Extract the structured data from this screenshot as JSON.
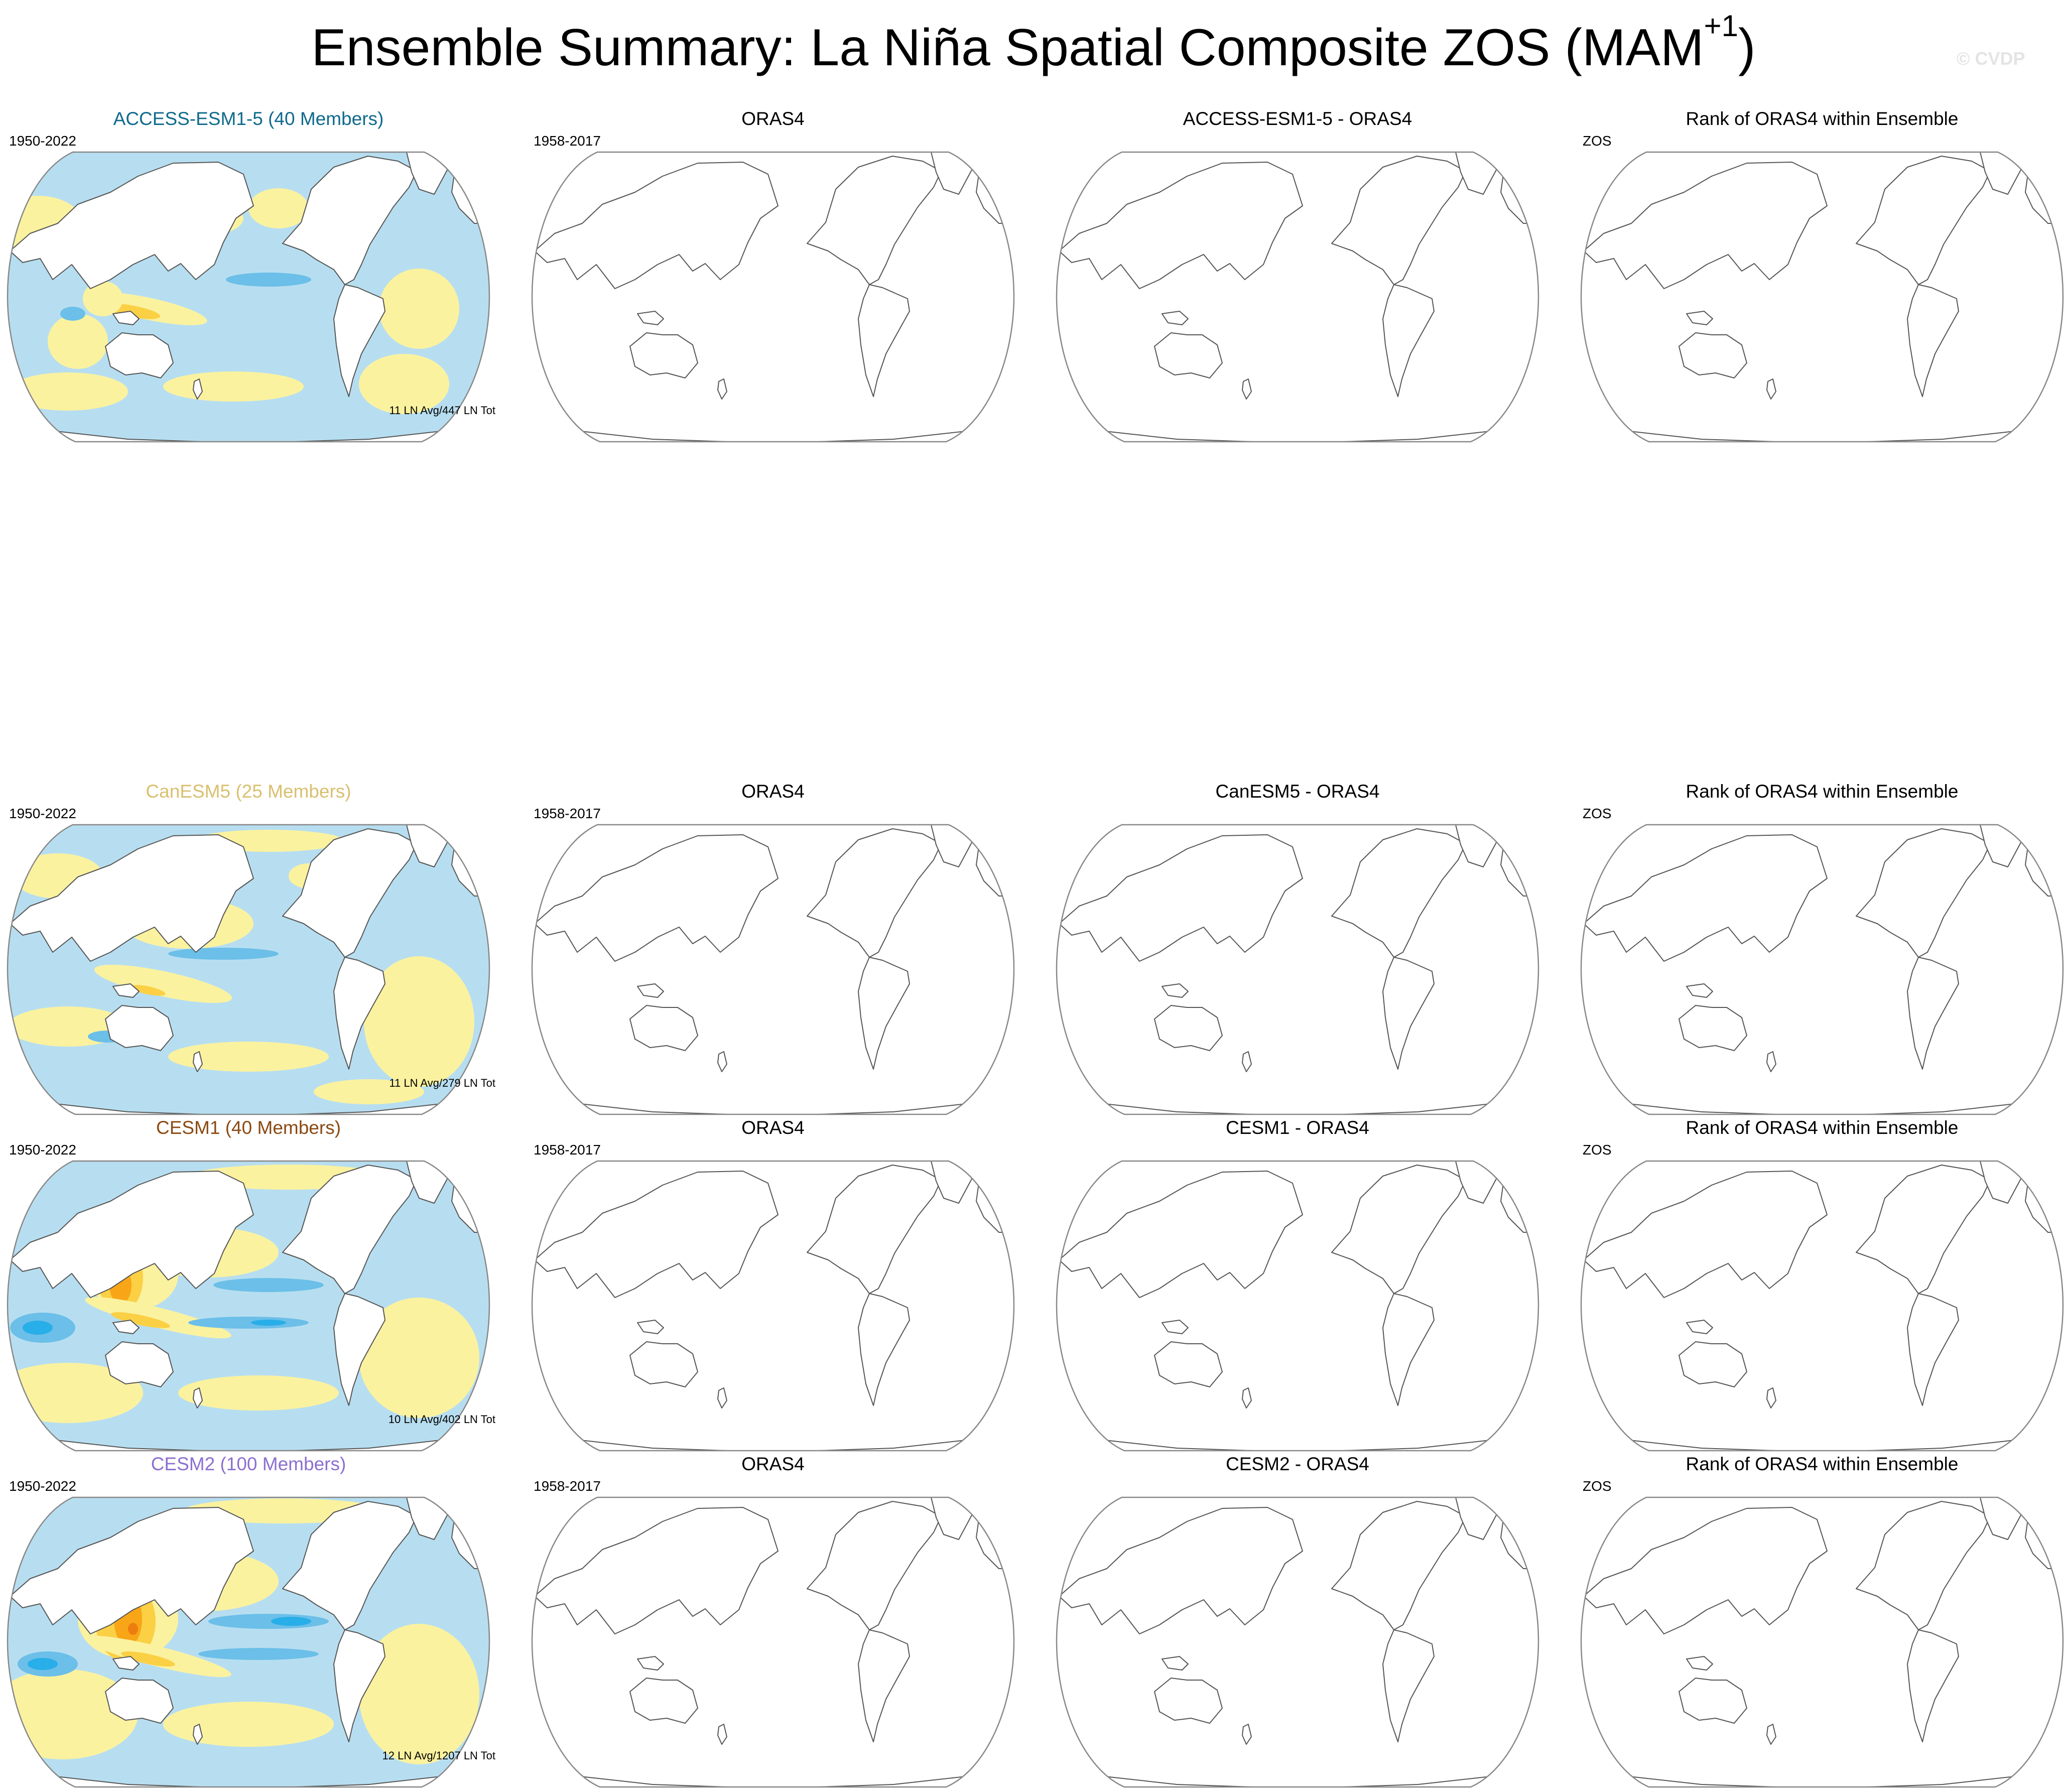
{
  "figure": {
    "title_main": "Ensemble Summary: La Niña Spatial Composite ZOS (MAM",
    "title_superscript": "+1",
    "title_close": ")",
    "watermark": "© CVDP"
  },
  "colors": {
    "ocean_negative_light": "#b7def0",
    "ocean_negative_medium": "#6bbfe8",
    "ocean_negative_strong": "#28aee8",
    "ocean_positive_light": "#fbf2a0",
    "ocean_positive_medium": "#fbd045",
    "ocean_positive_strong": "#f8a617",
    "ocean_positive_extreme": "#ee7d10",
    "coastline": "#555555",
    "map_border": "#888888"
  },
  "rows": [
    {
      "model_label": "ACCESS-ESM1-5 (40 Members)",
      "model_color": "#0f6a8c",
      "model_period": "1950-2022",
      "model_count": "11 LN Avg/447 LN Tot",
      "pattern": "weak",
      "obs_label": "ORAS4",
      "obs_period": "1958-2017",
      "diff_label": "ACCESS-ESM1-5 - ORAS4",
      "rank_label": "Rank of ORAS4 within Ensemble",
      "rank_sub": "ZOS"
    },
    {
      "model_label": "CanESM5 (25 Members)",
      "model_color": "#d9c06f",
      "model_period": "1950-2022",
      "model_count": "11 LN Avg/279 LN Tot",
      "pattern": "canesm",
      "obs_label": "ORAS4",
      "obs_period": "1958-2017",
      "diff_label": "CanESM5 - ORAS4",
      "rank_label": "Rank of ORAS4 within Ensemble",
      "rank_sub": "ZOS"
    },
    {
      "model_label": "CESM1 (40 Members)",
      "model_color": "#8a4a13",
      "model_period": "1950-2022",
      "model_count": "10 LN Avg/402 LN Tot",
      "pattern": "strong",
      "obs_label": "ORAS4",
      "obs_period": "1958-2017",
      "diff_label": "CESM1 - ORAS4",
      "rank_label": "Rank of ORAS4 within Ensemble",
      "rank_sub": "ZOS"
    },
    {
      "model_label": "CESM2 (100 Members)",
      "model_color": "#8c6fd0",
      "model_period": "1950-2022",
      "model_count": "12 LN Avg/1207 LN Tot",
      "pattern": "strongest",
      "obs_label": "ORAS4",
      "obs_period": "1958-2017",
      "diff_label": "CESM2 - ORAS4",
      "rank_label": "Rank of ORAS4 within Ensemble",
      "rank_sub": "ZOS"
    }
  ]
}
